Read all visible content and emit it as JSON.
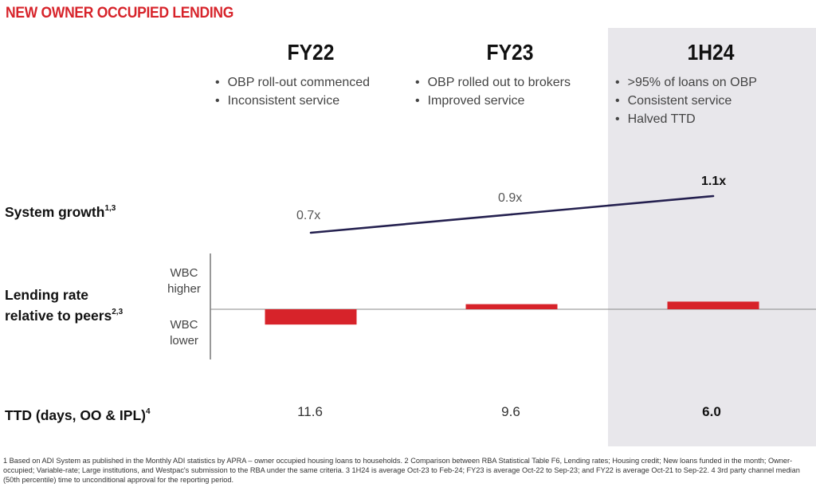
{
  "title": "NEW OWNER OCCUPIED LENDING",
  "periods": [
    {
      "label": "FY22",
      "bullets": [
        "OBP roll-out commenced",
        "Inconsistent service"
      ]
    },
    {
      "label": "FY23",
      "bullets": [
        "OBP rolled out to brokers",
        "Improved service"
      ]
    },
    {
      "label": "1H24",
      "bullets": [
        ">95% of loans on OBP",
        "Consistent service",
        "Halved  TTD"
      ]
    }
  ],
  "rows": {
    "system_growth": {
      "label": "System growth",
      "sup": "1,3"
    },
    "lending_rate": {
      "label_line1": "Lending rate",
      "label_line2": "relative to peers",
      "sup": "2,3"
    },
    "ttd": {
      "label": "TTD (days, OO & IPL)",
      "sup": "4"
    }
  },
  "axis_labels": {
    "higher": [
      "WBC",
      "higher"
    ],
    "lower": [
      "WBC",
      "lower"
    ]
  },
  "colors": {
    "accent": "#d7232a",
    "line": "#24204f",
    "shade": "#e8e7eb"
  },
  "chart_data": [
    {
      "type": "line",
      "categories": [
        "FY22",
        "FY23",
        "1H24"
      ],
      "series": [
        {
          "values": [
            0.7,
            0.9,
            1.1
          ]
        }
      ],
      "labels": [
        "0.7x",
        "0.9x",
        "1.1x"
      ],
      "ylim": [
        0.6,
        1.2
      ]
    },
    {
      "type": "bar",
      "categories": [
        "FY22",
        "FY23",
        "1H24"
      ],
      "series": [
        {
          "values": [
            -0.6,
            0.2,
            0.3
          ]
        }
      ],
      "axis_labels": {
        "positive": "WBC higher",
        "negative": "WBC lower"
      },
      "ylim": [
        -1,
        1
      ]
    },
    {
      "type": "table",
      "categories": [
        "FY22",
        "FY23",
        "1H24"
      ],
      "values": [
        "11.6",
        "9.6",
        "6.0"
      ]
    }
  ],
  "footnote": "1 Based on ADI System as published in the Monthly ADI statistics by APRA – owner occupied housing loans to households. 2 Comparison between RBA Statistical Table F6, Lending rates; Housing credit; New loans funded in the month; Owner-occupied; Variable-rate; Large institutions, and Westpac's submission to the RBA under the same criteria. 3 1H24 is average Oct-23 to Feb-24; FY23 is average Oct-22 to Sep-23; and FY22 is average Oct-21 to Sep-22. 4 3rd party channel median (50th percentile) time to unconditional approval for the reporting period."
}
